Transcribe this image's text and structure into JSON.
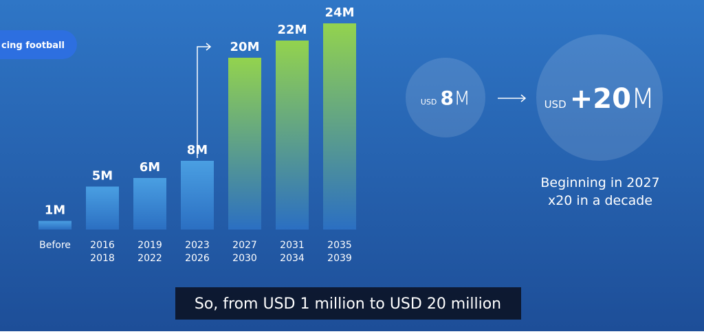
{
  "chart_data": {
    "type": "bar",
    "categories": [
      [
        "Before"
      ],
      [
        "2016",
        "2018"
      ],
      [
        "2019",
        "2022"
      ],
      [
        "2023",
        "2026"
      ],
      [
        "2027",
        "2030"
      ],
      [
        "2031",
        "2034"
      ],
      [
        "2035",
        "2039"
      ]
    ],
    "values": [
      1,
      5,
      6,
      8,
      20,
      22,
      24
    ],
    "value_labels": [
      "1M",
      "5M",
      "6M",
      "8M",
      "20M",
      "22M",
      "24M"
    ],
    "colors": [
      "#4a9fe2",
      "#4a9fe2",
      "#4a9fe2",
      "#4a9fe2",
      "#93d34e",
      "#93d34e",
      "#93d34e"
    ]
  },
  "badge": "cing football",
  "comparison": {
    "from": {
      "prefix": "USD",
      "amount": "8",
      "unit": "M"
    },
    "to": {
      "prefix": "USD",
      "amount": "+20",
      "unit": "M"
    }
  },
  "note": [
    "Beginning in 2027",
    "x20 in a decade"
  ],
  "caption": "So, from USD 1 million to USD 20 million"
}
